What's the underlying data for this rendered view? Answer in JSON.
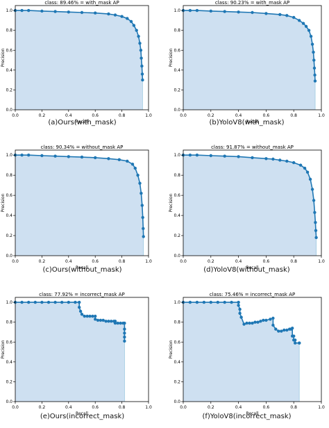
{
  "colors": {
    "line": "#1f77b4",
    "fill": "#c6dbef",
    "axis": "#000000",
    "fill_edge": "#9ecae1"
  },
  "chart_data": [
    {
      "type": "area",
      "title": "class: 89.46% = with_mask AP",
      "xlabel": "Recall",
      "ylabel": "Precision",
      "xlim": [
        0,
        1
      ],
      "ylim": [
        0,
        1.05
      ],
      "xticks": [
        "0.0",
        "0.2",
        "0.4",
        "0.6",
        "0.8",
        "1.0"
      ],
      "yticks": [
        "0.0",
        "0.2",
        "0.4",
        "0.6",
        "0.8",
        "1.0"
      ],
      "grid": false,
      "caption": "(a)Ours(with_mask)",
      "series": [
        {
          "x": [
            0.0,
            0.05,
            0.1,
            0.2,
            0.3,
            0.4,
            0.5,
            0.6,
            0.7,
            0.75,
            0.8,
            0.84,
            0.87,
            0.89,
            0.91,
            0.925,
            0.935,
            0.942,
            0.946,
            0.95,
            0.953,
            0.955
          ],
          "y": [
            1.0,
            1.0,
            1.0,
            0.995,
            0.99,
            0.985,
            0.98,
            0.975,
            0.965,
            0.955,
            0.94,
            0.92,
            0.89,
            0.85,
            0.8,
            0.74,
            0.67,
            0.6,
            0.52,
            0.44,
            0.36,
            0.3
          ]
        }
      ]
    },
    {
      "type": "area",
      "title": "class: 90.23% = with_mask AP",
      "xlabel": "Recall",
      "ylabel": "Precision",
      "xlim": [
        0,
        1
      ],
      "ylim": [
        0,
        1.05
      ],
      "xticks": [
        "0.0",
        "0.2",
        "0.4",
        "0.6",
        "0.8",
        "1.0"
      ],
      "yticks": [
        "0.0",
        "0.2",
        "0.4",
        "0.6",
        "0.8",
        "1.0"
      ],
      "grid": false,
      "caption": "(b)YoloV8(with_mask)",
      "series": [
        {
          "x": [
            0.0,
            0.05,
            0.1,
            0.2,
            0.3,
            0.4,
            0.5,
            0.6,
            0.7,
            0.75,
            0.8,
            0.84,
            0.87,
            0.89,
            0.91,
            0.925,
            0.935,
            0.942,
            0.946,
            0.95,
            0.953,
            0.955
          ],
          "y": [
            1.0,
            1.0,
            1.0,
            0.995,
            0.99,
            0.985,
            0.98,
            0.97,
            0.96,
            0.95,
            0.93,
            0.9,
            0.87,
            0.84,
            0.8,
            0.74,
            0.66,
            0.58,
            0.5,
            0.42,
            0.35,
            0.29
          ]
        }
      ]
    },
    {
      "type": "area",
      "title": "class: 90.34% = without_mask AP",
      "xlabel": "Recall",
      "ylabel": "Precision",
      "xlim": [
        0,
        1
      ],
      "ylim": [
        0,
        1.05
      ],
      "xticks": [
        "0.0",
        "0.2",
        "0.4",
        "0.6",
        "0.8",
        "1.0"
      ],
      "yticks": [
        "0.0",
        "0.2",
        "0.4",
        "0.6",
        "0.8",
        "1.0"
      ],
      "grid": false,
      "caption": "(c)Ours(without_mask)",
      "series": [
        {
          "x": [
            0.0,
            0.05,
            0.1,
            0.2,
            0.3,
            0.4,
            0.5,
            0.6,
            0.7,
            0.78,
            0.84,
            0.88,
            0.9,
            0.92,
            0.935,
            0.945,
            0.952,
            0.957,
            0.96,
            0.962
          ],
          "y": [
            1.0,
            1.0,
            1.0,
            0.995,
            0.99,
            0.985,
            0.98,
            0.975,
            0.965,
            0.955,
            0.94,
            0.91,
            0.87,
            0.8,
            0.72,
            0.62,
            0.5,
            0.38,
            0.27,
            0.19
          ]
        }
      ]
    },
    {
      "type": "area",
      "title": "class: 91.87% = without_mask AP",
      "xlabel": "Recall",
      "ylabel": "Precision",
      "xlim": [
        0,
        1
      ],
      "ylim": [
        0,
        1.05
      ],
      "xticks": [
        "0.0",
        "0.2",
        "0.4",
        "0.6",
        "0.8",
        "1.0"
      ],
      "yticks": [
        "0.0",
        "0.2",
        "0.4",
        "0.6",
        "0.8",
        "1.0"
      ],
      "grid": false,
      "caption": "(d)YoloV8(without_mask)",
      "series": [
        {
          "x": [
            0.0,
            0.05,
            0.1,
            0.2,
            0.3,
            0.4,
            0.5,
            0.6,
            0.65,
            0.7,
            0.75,
            0.8,
            0.85,
            0.88,
            0.9,
            0.92,
            0.935,
            0.945,
            0.952,
            0.957,
            0.96,
            0.963
          ],
          "y": [
            1.0,
            1.0,
            1.0,
            0.995,
            0.99,
            0.985,
            0.975,
            0.965,
            0.96,
            0.95,
            0.94,
            0.925,
            0.9,
            0.87,
            0.83,
            0.76,
            0.66,
            0.55,
            0.43,
            0.33,
            0.25,
            0.18
          ]
        }
      ]
    },
    {
      "type": "area",
      "title": "class: 77.92% = incorrect_mask AP",
      "xlabel": "Recall",
      "ylabel": "Precision",
      "xlim": [
        0,
        1
      ],
      "ylim": [
        0,
        1.05
      ],
      "xticks": [
        "0.0",
        "0.2",
        "0.4",
        "0.6",
        "0.8",
        "1.0"
      ],
      "yticks": [
        "0.0",
        "0.2",
        "0.4",
        "0.6",
        "0.8",
        "1.0"
      ],
      "grid": false,
      "caption": "(e)Ours(incorrect_mask)",
      "series": [
        {
          "x": [
            0.0,
            0.05,
            0.1,
            0.15,
            0.2,
            0.25,
            0.3,
            0.35,
            0.4,
            0.45,
            0.48,
            0.48,
            0.49,
            0.5,
            0.52,
            0.54,
            0.56,
            0.58,
            0.6,
            0.6,
            0.62,
            0.64,
            0.66,
            0.68,
            0.7,
            0.72,
            0.74,
            0.75,
            0.75,
            0.77,
            0.79,
            0.81,
            0.82,
            0.82,
            0.82,
            0.82,
            0.82
          ],
          "y": [
            1.0,
            1.0,
            1.0,
            1.0,
            1.0,
            1.0,
            1.0,
            1.0,
            1.0,
            1.0,
            1.0,
            0.95,
            0.91,
            0.88,
            0.86,
            0.86,
            0.86,
            0.86,
            0.86,
            0.83,
            0.82,
            0.82,
            0.82,
            0.81,
            0.81,
            0.81,
            0.81,
            0.81,
            0.79,
            0.79,
            0.79,
            0.79,
            0.79,
            0.73,
            0.69,
            0.65,
            0.61
          ]
        }
      ]
    },
    {
      "type": "area",
      "title": "class: 75.46% = incorrect_mask AP",
      "xlabel": "Recall",
      "ylabel": "Precision",
      "xlim": [
        0,
        1
      ],
      "ylim": [
        0,
        1.05
      ],
      "xticks": [
        "0.0",
        "0.2",
        "0.4",
        "0.6",
        "0.8",
        "1.0"
      ],
      "yticks": [
        "0.0",
        "0.2",
        "0.4",
        "0.6",
        "0.8",
        "1.0"
      ],
      "grid": false,
      "caption": "(f)YoloV8(incorrect_mask)",
      "series": [
        {
          "x": [
            0.0,
            0.05,
            0.1,
            0.15,
            0.2,
            0.25,
            0.3,
            0.35,
            0.4,
            0.4,
            0.41,
            0.41,
            0.42,
            0.44,
            0.46,
            0.48,
            0.5,
            0.52,
            0.54,
            0.56,
            0.58,
            0.6,
            0.63,
            0.65,
            0.65,
            0.67,
            0.69,
            0.71,
            0.73,
            0.75,
            0.77,
            0.78,
            0.79,
            0.79,
            0.8,
            0.8,
            0.81,
            0.81,
            0.84,
            0.84
          ],
          "y": [
            1.0,
            1.0,
            1.0,
            1.0,
            1.0,
            1.0,
            1.0,
            1.0,
            1.0,
            0.97,
            0.93,
            0.89,
            0.85,
            0.78,
            0.79,
            0.79,
            0.79,
            0.8,
            0.8,
            0.81,
            0.82,
            0.82,
            0.83,
            0.84,
            0.77,
            0.73,
            0.71,
            0.71,
            0.72,
            0.72,
            0.73,
            0.73,
            0.74,
            0.66,
            0.66,
            0.62,
            0.62,
            0.59,
            0.59,
            0.59
          ]
        }
      ]
    }
  ]
}
